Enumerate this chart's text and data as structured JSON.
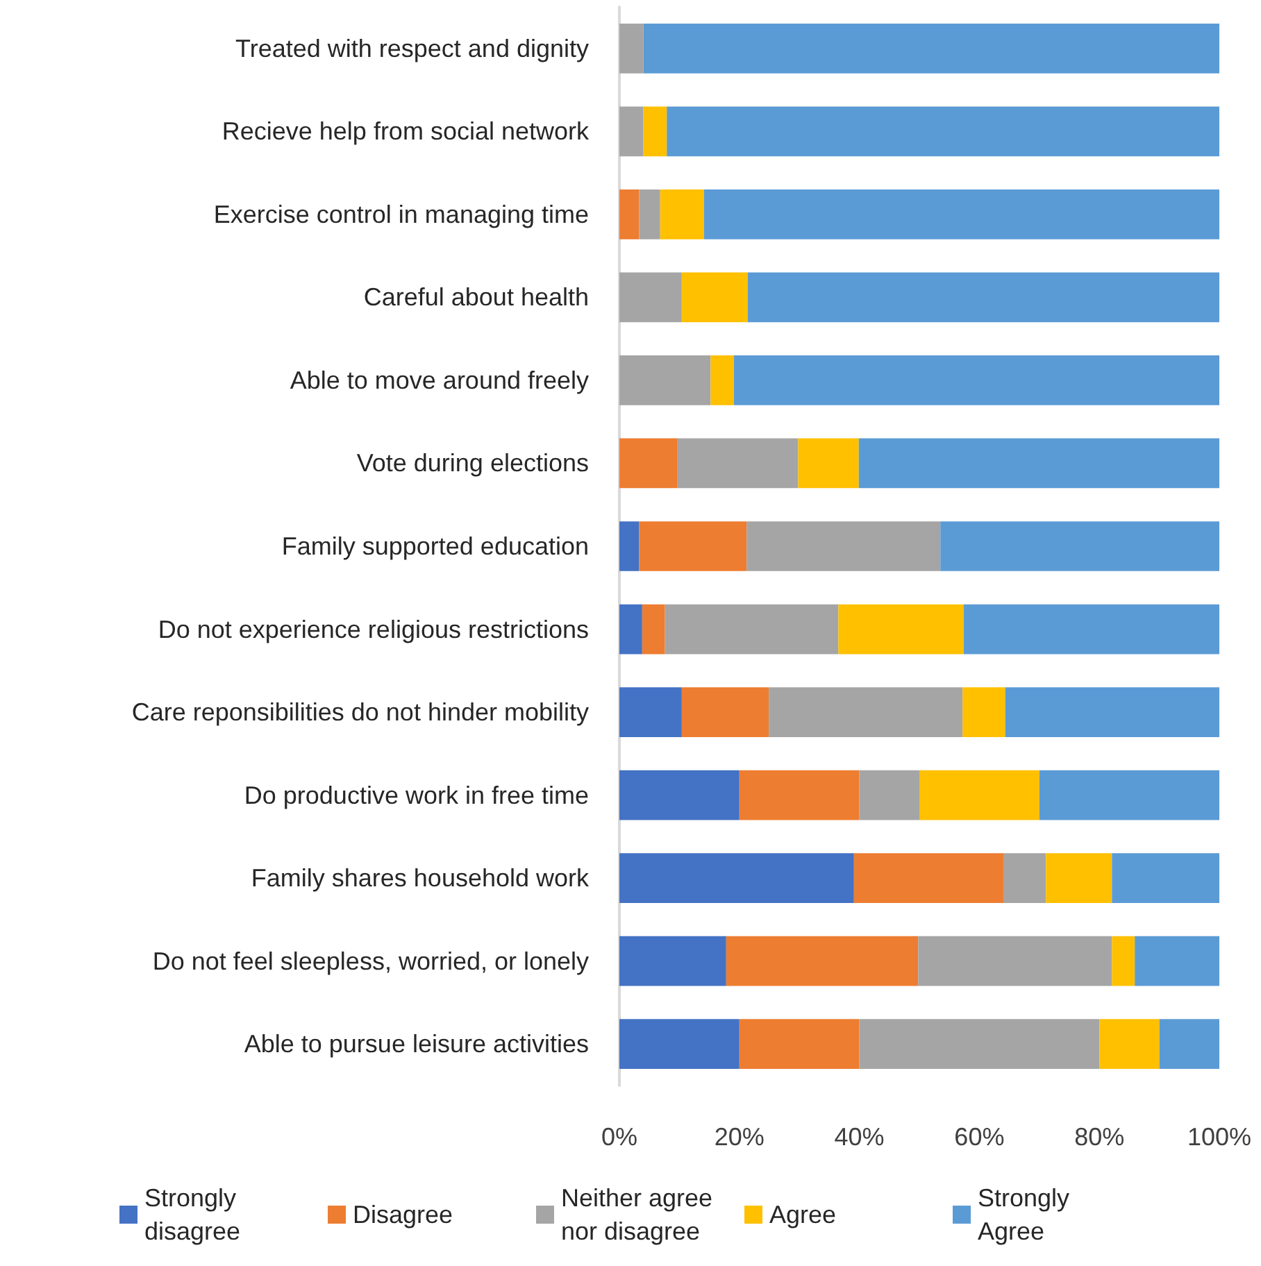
{
  "chart_data": {
    "type": "bar",
    "orientation": "horizontal",
    "stacked": true,
    "categories": [
      "Treated with respect and dignity",
      "Recieve help from social network",
      "Exercise control in managing time",
      "Careful about health",
      "Able to move around freely",
      "Vote during elections",
      "Family supported education",
      "Do not experience religious restrictions",
      "Care reponsibilities do not hinder mobility",
      "Do productive work in free time",
      "Family shares household work",
      "Do not feel sleepless, worried, or lonely",
      "Able to pursue leisure activities"
    ],
    "series": [
      {
        "name": "Strongly disagree",
        "color": "#4472c4",
        "values": [
          0,
          0,
          0,
          0,
          0,
          0,
          3.3,
          3.8,
          10.4,
          20,
          39.1,
          17.8,
          20
        ]
      },
      {
        "name": "Disagree",
        "color": "#ed7d31",
        "values": [
          0,
          0,
          3.3,
          0,
          0,
          9.7,
          17.9,
          3.8,
          14.5,
          20,
          25,
          32,
          20
        ]
      },
      {
        "name": "Neither agree nor disagree",
        "color": "#a5a5a5",
        "values": [
          4,
          4,
          3.5,
          10.4,
          15.2,
          20.1,
          32.3,
          28.9,
          32.3,
          10,
          7,
          32.3,
          40
        ]
      },
      {
        "name": "Agree",
        "color": "#ffc000",
        "values": [
          0,
          3.9,
          7.3,
          11,
          3.9,
          10.1,
          0,
          20.9,
          7.1,
          20,
          11,
          3.8,
          10
        ]
      },
      {
        "name": "Strongly Agree",
        "color": "#5b9bd5",
        "values": [
          96,
          92.1,
          85.9,
          78.6,
          80.9,
          60.1,
          46.5,
          42.6,
          35.7,
          30,
          17.9,
          14.1,
          10
        ]
      }
    ],
    "xlim": [
      0,
      100
    ],
    "xticks": [
      {
        "value": 0,
        "label": "0%"
      },
      {
        "value": 20,
        "label": "20%"
      },
      {
        "value": 40,
        "label": "40%"
      },
      {
        "value": 60,
        "label": "60%"
      },
      {
        "value": 80,
        "label": "80%"
      },
      {
        "value": 100,
        "label": "100%"
      }
    ],
    "grid": false,
    "legend": "bottom"
  }
}
